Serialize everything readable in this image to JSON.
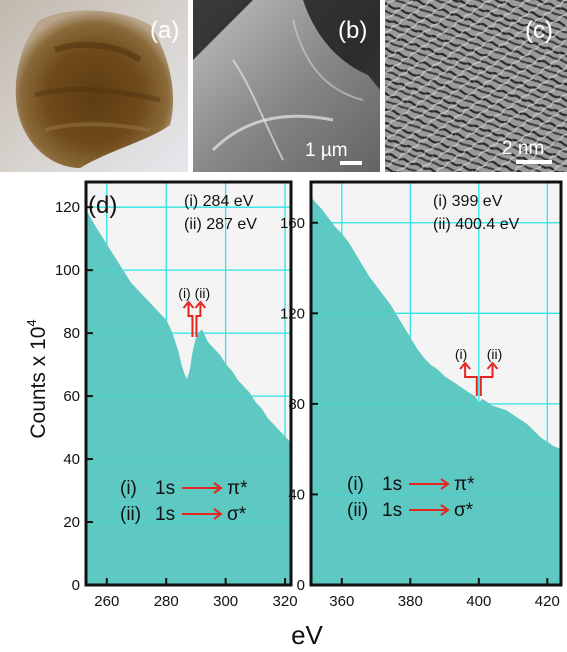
{
  "figure": {
    "panels": {
      "a": {
        "label": "(a)"
      },
      "b": {
        "label": "(b)",
        "scale_bar": "1 µm"
      },
      "c": {
        "label": "(c)",
        "scale_bar": "2 nm"
      },
      "d": {
        "label": "(d)"
      }
    },
    "shared_xlabel": "eV",
    "shared_ylabel_main": "Counts x 10",
    "shared_ylabel_sup": "4"
  },
  "colors": {
    "spectrum": "#5ec8c2",
    "grid": "#2ee5e5",
    "marker": "#e52620",
    "axis": "#111111"
  },
  "chart_data": [
    {
      "type": "area",
      "name": "carbon-k-edge",
      "xlim": [
        253,
        322
      ],
      "ylim": [
        0,
        128
      ],
      "xticks": [
        260,
        280,
        300,
        320
      ],
      "yticks": [
        0,
        20,
        40,
        60,
        80,
        100,
        120
      ],
      "grid": true,
      "x": [
        253,
        256,
        258,
        260,
        262,
        264,
        266,
        268,
        270,
        272,
        274,
        276,
        278,
        280,
        282,
        284,
        285,
        286,
        287,
        288,
        289,
        290,
        291,
        292,
        293,
        294,
        296,
        298,
        300,
        302,
        304,
        306,
        308,
        310,
        312,
        314,
        316,
        318,
        320,
        322
      ],
      "y": [
        119,
        114,
        111,
        108,
        105,
        102,
        99,
        96,
        94,
        92,
        90,
        88,
        86,
        84,
        80,
        74,
        70,
        67,
        65,
        68,
        74,
        78,
        80,
        81,
        79,
        77,
        75,
        73,
        70,
        68,
        65,
        63,
        61,
        58,
        56,
        53,
        51,
        49,
        47,
        45
      ],
      "annotations": {
        "edge_energies": [
          "(i)   284 eV",
          "(ii)  287 eV"
        ],
        "markers": [
          {
            "label": "(i)",
            "x": 287.5
          },
          {
            "label": "(ii)",
            "x": 291.5
          }
        ],
        "transitions": [
          {
            "index": "(i)",
            "text": "1s",
            "target": "π*"
          },
          {
            "index": "(ii)",
            "text": "1s",
            "target": "σ*"
          }
        ]
      }
    },
    {
      "type": "area",
      "name": "nitrogen-k-edge",
      "xlim": [
        351,
        424
      ],
      "ylim": [
        0,
        178
      ],
      "xticks": [
        360,
        380,
        400,
        420
      ],
      "yticks": [
        0,
        40,
        80,
        120,
        160
      ],
      "grid": true,
      "x": [
        351,
        354,
        356,
        358,
        360,
        362,
        364,
        366,
        368,
        370,
        372,
        374,
        376,
        378,
        380,
        382,
        384,
        386,
        388,
        390,
        392,
        394,
        396,
        398,
        399,
        400,
        401,
        402,
        404,
        406,
        408,
        410,
        412,
        414,
        416,
        418,
        420,
        422,
        424
      ],
      "y": [
        171,
        166,
        162,
        158,
        155,
        151,
        146,
        141,
        136,
        132,
        128,
        124,
        119,
        114,
        109,
        104,
        100,
        97,
        95,
        92,
        90,
        88,
        86,
        84,
        83,
        80,
        82,
        81,
        79,
        78,
        77,
        75,
        73,
        71,
        68,
        65,
        63,
        61,
        60
      ],
      "annotations": {
        "edge_energies": [
          "(i)   399 eV",
          "(ii)  400.4 eV"
        ],
        "markers": [
          {
            "label": "(i)",
            "x": 396
          },
          {
            "label": "(ii)",
            "x": 404
          }
        ],
        "transitions": [
          {
            "index": "(i)",
            "text": "1s",
            "target": "π*"
          },
          {
            "index": "(ii)",
            "text": "1s",
            "target": "σ*"
          }
        ]
      }
    }
  ]
}
